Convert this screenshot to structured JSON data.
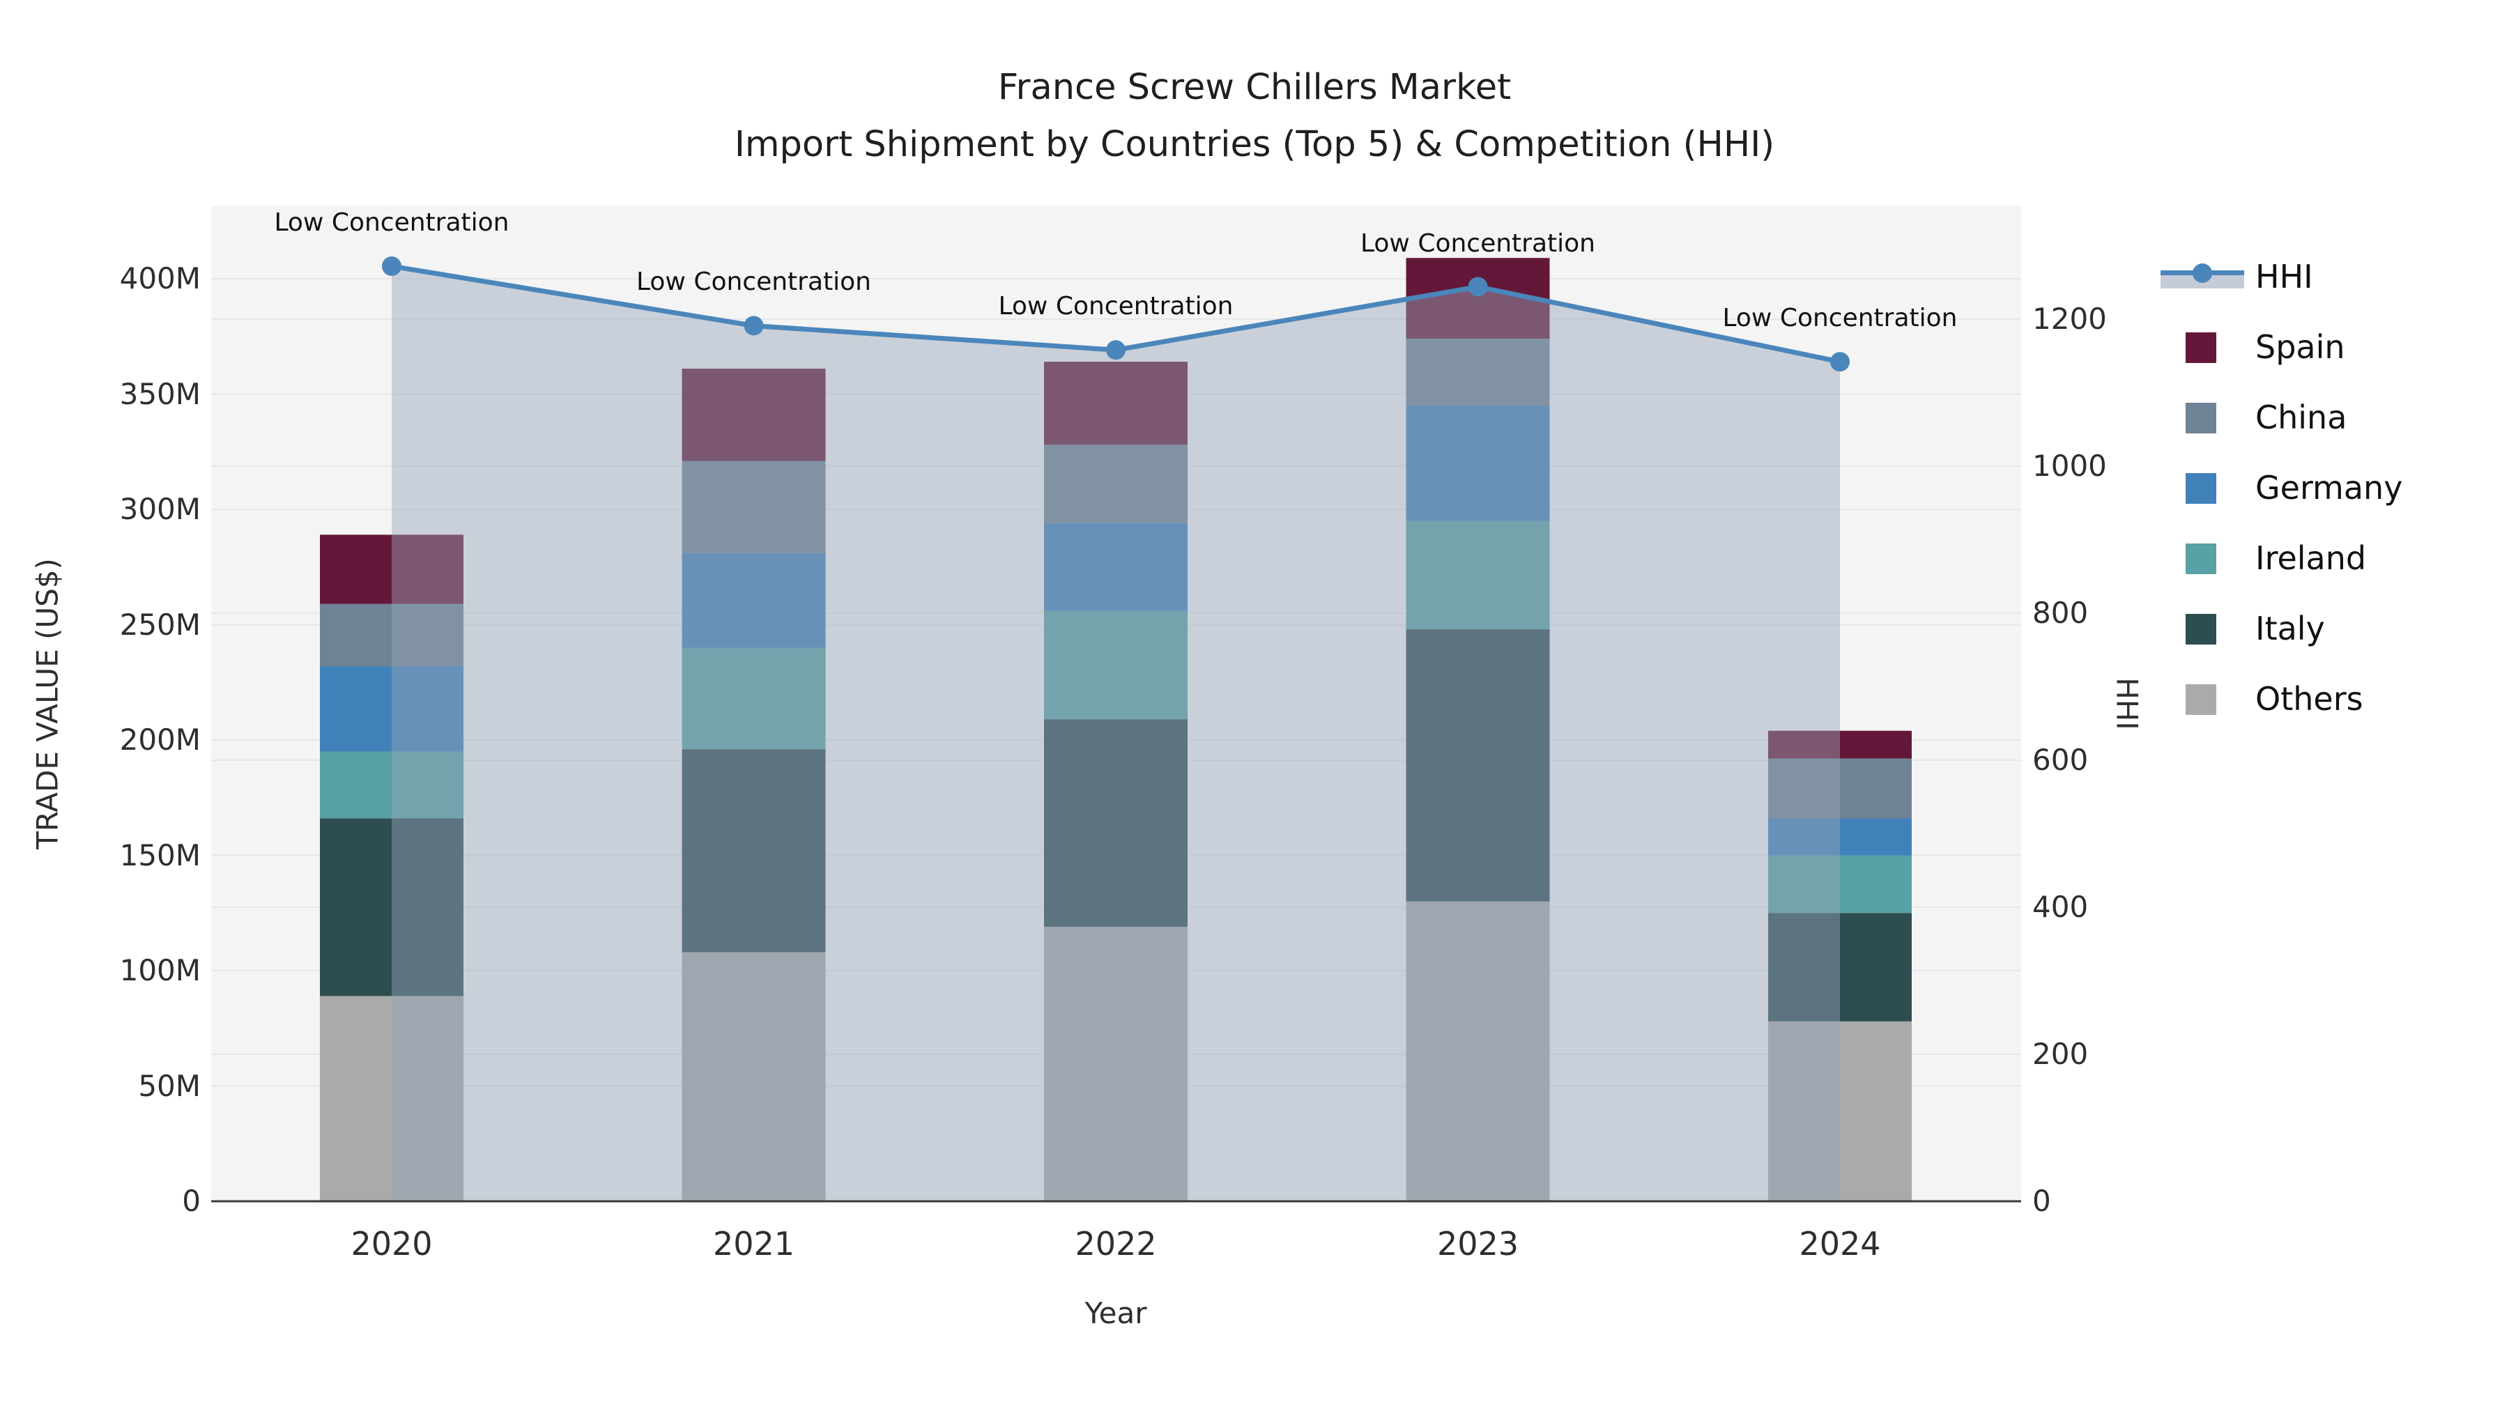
{
  "title": {
    "line1": "France Screw Chillers Market",
    "line2": "Import Shipment by Countries (Top 5) & Competition (HHI)"
  },
  "chart_data": {
    "type": "bar",
    "subtype": "stacked-bars-with-dual-axis-line",
    "categories": [
      "2020",
      "2021",
      "2022",
      "2023",
      "2024"
    ],
    "value_unit": "M US$ (millions)",
    "stack_order_bottom_to_top": [
      "Others",
      "Italy",
      "Ireland",
      "Germany",
      "China",
      "Spain"
    ],
    "series": [
      {
        "name": "Spain",
        "values": [
          30,
          40,
          36,
          35,
          12
        ]
      },
      {
        "name": "China",
        "values": [
          27,
          40,
          34,
          29,
          26
        ]
      },
      {
        "name": "Germany",
        "values": [
          37,
          41,
          38,
          50,
          16
        ]
      },
      {
        "name": "Ireland",
        "values": [
          29,
          44,
          47,
          47,
          25
        ]
      },
      {
        "name": "Italy",
        "values": [
          77,
          88,
          90,
          118,
          47
        ]
      },
      {
        "name": "Others",
        "values": [
          89,
          108,
          119,
          130,
          78
        ]
      }
    ],
    "bar_totals": [
      289,
      361,
      364,
      409,
      204
    ],
    "line_series": {
      "name": "HHI",
      "values": [
        1272,
        1191,
        1158,
        1244,
        1142
      ],
      "axis": "y2",
      "area_fill": true
    },
    "annotations": [
      {
        "x": "2020",
        "text": "Low Concentration"
      },
      {
        "x": "2021",
        "text": "Low Concentration"
      },
      {
        "x": "2022",
        "text": "Low Concentration"
      },
      {
        "x": "2023",
        "text": "Low Concentration"
      },
      {
        "x": "2024",
        "text": "Low Concentration"
      }
    ],
    "xlabel": "Year",
    "y1": {
      "label": "TRADE VALUE (US$)",
      "ticks": [
        "0",
        "50M",
        "100M",
        "150M",
        "200M",
        "250M",
        "300M",
        "350M",
        "400M"
      ],
      "tick_values": [
        0,
        50,
        100,
        150,
        200,
        250,
        300,
        350,
        400
      ],
      "range": [
        0,
        431
      ]
    },
    "y2": {
      "label": "HHI",
      "ticks": [
        "0",
        "200",
        "400",
        "600",
        "800",
        "1000",
        "1200"
      ],
      "tick_values": [
        0,
        200,
        400,
        600,
        800,
        1000,
        1200
      ],
      "range": [
        0,
        1354
      ]
    },
    "legend": [
      "HHI",
      "Spain",
      "China",
      "Germany",
      "Ireland",
      "Italy",
      "Others"
    ],
    "legend_position": "right",
    "grid": true,
    "colors": {
      "Spain": "#641839",
      "China": "#6f8396",
      "Germany": "#4181ba",
      "Ireland": "#58a1a4",
      "Italy": "#2d4d50",
      "Others": "#a9aaa9",
      "HHI_line": "#4a86bb",
      "HHI_area_fill": "rgba(151,163,183,0.45)",
      "plot_background": "#f4f4f4",
      "gridline": "#e5e7e9",
      "axis_line": "#3a3a3a",
      "text": "#2e2e2e"
    }
  }
}
